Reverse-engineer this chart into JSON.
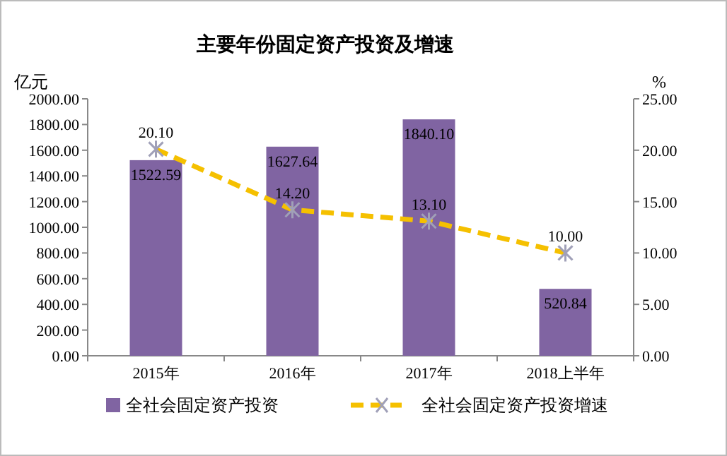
{
  "chart_data": {
    "type": "bar",
    "title": "主要年份固定资产投资及增速",
    "ylabel": "亿元",
    "y2label": "%",
    "categories": [
      "2015年",
      "2016年",
      "2017年",
      "2018上半年"
    ],
    "series": [
      {
        "name": "全社会固定资产投资",
        "color": "#8064a2",
        "values": [
          1522.59,
          1627.64,
          1840.1,
          520.84
        ],
        "value_labels": [
          "1522.59",
          "1627.64",
          "1840.10",
          "520.84"
        ]
      },
      {
        "name": "全社会固定资产投资增速",
        "type": "line",
        "axis": "y2",
        "color": "#f5c000",
        "values": [
          20.1,
          14.2,
          13.1,
          10.0
        ],
        "value_labels": [
          "20.10",
          "14.20",
          "13.10",
          "10.00"
        ],
        "marker": "cross",
        "line_style": "dashed"
      }
    ],
    "ylim": [
      0,
      2000
    ],
    "yticks": [
      {
        "value": 0,
        "label": "0.00"
      },
      {
        "value": 200,
        "label": "200.00"
      },
      {
        "value": 400,
        "label": "400.00"
      },
      {
        "value": 600,
        "label": "600.00"
      },
      {
        "value": 800,
        "label": "800.00"
      },
      {
        "value": 1000,
        "label": "1000.00"
      },
      {
        "value": 1200,
        "label": "1200.00"
      },
      {
        "value": 1400,
        "label": "1400.00"
      },
      {
        "value": 1600,
        "label": "1600.00"
      },
      {
        "value": 1800,
        "label": "1800.00"
      },
      {
        "value": 2000,
        "label": "2000.00"
      }
    ],
    "y2lim": [
      0,
      25
    ],
    "y2ticks": [
      {
        "value": 0,
        "label": "0.00"
      },
      {
        "value": 5,
        "label": "5.00"
      },
      {
        "value": 10,
        "label": "10.00"
      },
      {
        "value": 15,
        "label": "15.00"
      },
      {
        "value": 20,
        "label": "20.00"
      },
      {
        "value": 25,
        "label": "25.00"
      }
    ],
    "legend": "bottom",
    "grid": false
  }
}
